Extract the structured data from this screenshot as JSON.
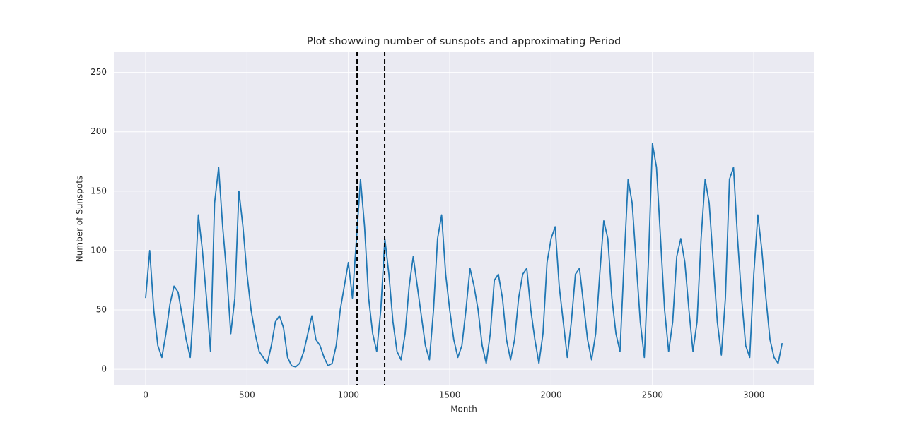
{
  "chart_data": {
    "type": "line",
    "title": "Plot showwing number of sunspots and approximating Period",
    "x_label": "Month",
    "y_label": "Number of Sunspots",
    "color": "#1f77b4",
    "grid": true,
    "vline_color": "#000000",
    "xlim": [
      -157,
      3296
    ],
    "ylim": [
      -13,
      267
    ],
    "xticks": [
      0,
      500,
      1000,
      1500,
      2000,
      2500,
      3000
    ],
    "yticks": [
      0,
      50,
      100,
      150,
      200,
      250
    ],
    "vlines": [
      1043,
      1179
    ],
    "x": [
      0,
      20,
      40,
      60,
      80,
      100,
      120,
      140,
      160,
      180,
      200,
      220,
      240,
      260,
      280,
      300,
      320,
      340,
      360,
      380,
      400,
      420,
      440,
      460,
      480,
      500,
      520,
      540,
      560,
      580,
      600,
      620,
      640,
      660,
      680,
      700,
      720,
      740,
      760,
      780,
      800,
      820,
      840,
      860,
      880,
      900,
      920,
      940,
      960,
      980,
      1000,
      1020,
      1040,
      1060,
      1080,
      1100,
      1120,
      1140,
      1160,
      1180,
      1200,
      1220,
      1240,
      1260,
      1280,
      1300,
      1320,
      1340,
      1360,
      1380,
      1400,
      1420,
      1440,
      1460,
      1480,
      1500,
      1520,
      1540,
      1560,
      1580,
      1600,
      1620,
      1640,
      1660,
      1680,
      1700,
      1720,
      1740,
      1760,
      1780,
      1800,
      1820,
      1840,
      1860,
      1880,
      1900,
      1920,
      1940,
      1960,
      1980,
      2000,
      2020,
      2040,
      2060,
      2080,
      2100,
      2120,
      2140,
      2160,
      2180,
      2200,
      2220,
      2240,
      2260,
      2280,
      2300,
      2320,
      2340,
      2360,
      2380,
      2400,
      2420,
      2440,
      2460,
      2480,
      2500,
      2520,
      2540,
      2560,
      2580,
      2600,
      2620,
      2640,
      2660,
      2680,
      2700,
      2720,
      2740,
      2760,
      2780,
      2800,
      2820,
      2840,
      2860,
      2880,
      2900,
      2920,
      2940,
      2960,
      2980,
      3000,
      3020,
      3040,
      3060,
      3080,
      3100,
      3120,
      3140
    ],
    "values": [
      60,
      100,
      50,
      20,
      10,
      30,
      55,
      70,
      65,
      45,
      25,
      10,
      60,
      130,
      100,
      60,
      15,
      140,
      170,
      120,
      80,
      30,
      60,
      150,
      120,
      80,
      50,
      30,
      15,
      10,
      5,
      20,
      40,
      45,
      35,
      10,
      3,
      2,
      5,
      15,
      30,
      45,
      25,
      20,
      10,
      3,
      5,
      20,
      50,
      70,
      90,
      60,
      110,
      160,
      120,
      60,
      30,
      15,
      50,
      110,
      80,
      40,
      15,
      8,
      30,
      70,
      95,
      70,
      45,
      20,
      8,
      50,
      110,
      130,
      80,
      50,
      25,
      10,
      20,
      50,
      85,
      70,
      50,
      20,
      5,
      30,
      75,
      80,
      60,
      25,
      8,
      25,
      60,
      80,
      85,
      50,
      25,
      5,
      30,
      90,
      110,
      120,
      70,
      40,
      10,
      40,
      80,
      85,
      55,
      25,
      8,
      30,
      80,
      125,
      110,
      60,
      30,
      15,
      90,
      160,
      140,
      90,
      40,
      10,
      90,
      190,
      170,
      110,
      50,
      15,
      40,
      95,
      110,
      90,
      50,
      15,
      40,
      110,
      160,
      140,
      90,
      40,
      12,
      60,
      160,
      170,
      110,
      60,
      20,
      10,
      80,
      130,
      100,
      60,
      25,
      10,
      5,
      22
    ]
  }
}
